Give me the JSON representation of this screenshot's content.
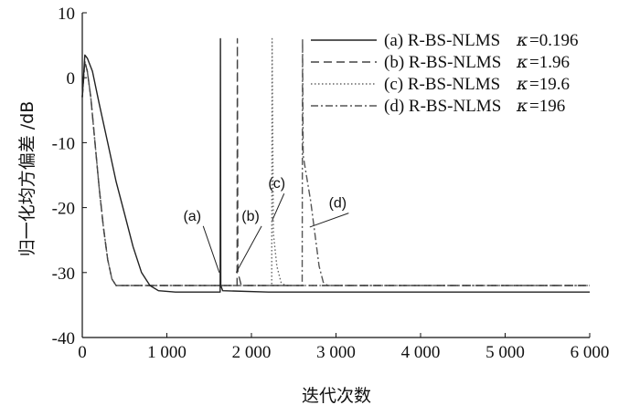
{
  "chart_data": {
    "type": "line",
    "xlabel": "迭代次数",
    "ylabel": "归一化均方偏差 /dB",
    "xlim": [
      0,
      6000
    ],
    "ylim": [
      -40,
      10
    ],
    "x_ticks": [
      0,
      1000,
      2000,
      3000,
      4000,
      5000,
      6000
    ],
    "x_tick_labels": [
      "0",
      "1 000",
      "2 000",
      "3 000",
      "4 000",
      "5 000",
      "6 000"
    ],
    "y_ticks": [
      -40,
      -30,
      -20,
      -10,
      0,
      10
    ],
    "y_tick_labels": [
      "-40",
      "-30",
      "-20",
      "-10",
      "0",
      "10"
    ],
    "grid": false,
    "legend_position": "top-right",
    "series": [
      {
        "name": "(a) R-BS-NLMS",
        "kappa": "=0.196",
        "label": "(a)",
        "style": "solid",
        "color": "#222222",
        "points": [
          [
            0,
            -3
          ],
          [
            30,
            3.5
          ],
          [
            60,
            3
          ],
          [
            120,
            1
          ],
          [
            200,
            -4
          ],
          [
            300,
            -10
          ],
          [
            400,
            -16
          ],
          [
            500,
            -21
          ],
          [
            600,
            -26
          ],
          [
            700,
            -30
          ],
          [
            800,
            -32
          ],
          [
            900,
            -32.8
          ],
          [
            1100,
            -33
          ],
          [
            1630,
            -33
          ],
          [
            1634,
            6
          ],
          [
            1638,
            -32
          ],
          [
            1660,
            -32.8
          ],
          [
            2200,
            -33
          ],
          [
            3000,
            -33
          ],
          [
            4000,
            -33
          ],
          [
            5000,
            -33
          ],
          [
            6000,
            -33
          ]
        ]
      },
      {
        "name": "(b) R-BS-NLMS",
        "kappa": "=1.96",
        "label": "(b)",
        "style": "dashed",
        "color": "#444444",
        "points": [
          [
            0,
            -3
          ],
          [
            30,
            2.5
          ],
          [
            60,
            1
          ],
          [
            100,
            -3
          ],
          [
            150,
            -10
          ],
          [
            200,
            -17
          ],
          [
            250,
            -23
          ],
          [
            300,
            -28
          ],
          [
            350,
            -31
          ],
          [
            400,
            -32
          ],
          [
            600,
            -32
          ],
          [
            1830,
            -32
          ],
          [
            1834,
            6
          ],
          [
            1840,
            -30
          ],
          [
            1880,
            -32
          ],
          [
            2500,
            -32
          ],
          [
            4000,
            -32
          ],
          [
            6000,
            -32
          ]
        ]
      },
      {
        "name": "(c) R-BS-NLMS",
        "kappa": "=19.6",
        "label": "(c)",
        "style": "dotted",
        "color": "#666666",
        "points": [
          [
            0,
            -3
          ],
          [
            30,
            2.5
          ],
          [
            60,
            1
          ],
          [
            100,
            -3
          ],
          [
            150,
            -10
          ],
          [
            200,
            -17
          ],
          [
            250,
            -23
          ],
          [
            300,
            -28
          ],
          [
            350,
            -31
          ],
          [
            400,
            -32
          ],
          [
            600,
            -32
          ],
          [
            2240,
            -32
          ],
          [
            2244,
            6
          ],
          [
            2260,
            -24
          ],
          [
            2300,
            -29
          ],
          [
            2350,
            -31.5
          ],
          [
            2400,
            -32
          ],
          [
            4000,
            -32
          ],
          [
            6000,
            -32
          ]
        ]
      },
      {
        "name": "(d) R-BS-NLMS",
        "kappa": "=196",
        "label": "(d)",
        "style": "dashdot",
        "color": "#555555",
        "points": [
          [
            0,
            -3
          ],
          [
            30,
            2.5
          ],
          [
            60,
            1
          ],
          [
            100,
            -3
          ],
          [
            150,
            -10
          ],
          [
            200,
            -17
          ],
          [
            250,
            -23
          ],
          [
            300,
            -28
          ],
          [
            350,
            -31
          ],
          [
            400,
            -32
          ],
          [
            600,
            -32
          ],
          [
            2600,
            -32
          ],
          [
            2604,
            6
          ],
          [
            2612,
            -12
          ],
          [
            2650,
            -15
          ],
          [
            2700,
            -19
          ],
          [
            2750,
            -24
          ],
          [
            2800,
            -29
          ],
          [
            2850,
            -31.5
          ],
          [
            2900,
            -32
          ],
          [
            4000,
            -32
          ],
          [
            6000,
            -32
          ]
        ]
      }
    ],
    "annotations": [
      {
        "text": "(a)",
        "x": 1300,
        "y": -22
      },
      {
        "text": "(b)",
        "x": 1990,
        "y": -22
      },
      {
        "text": "(c)",
        "x": 2300,
        "y": -17
      },
      {
        "text": "(d)",
        "x": 3020,
        "y": -20
      }
    ]
  }
}
